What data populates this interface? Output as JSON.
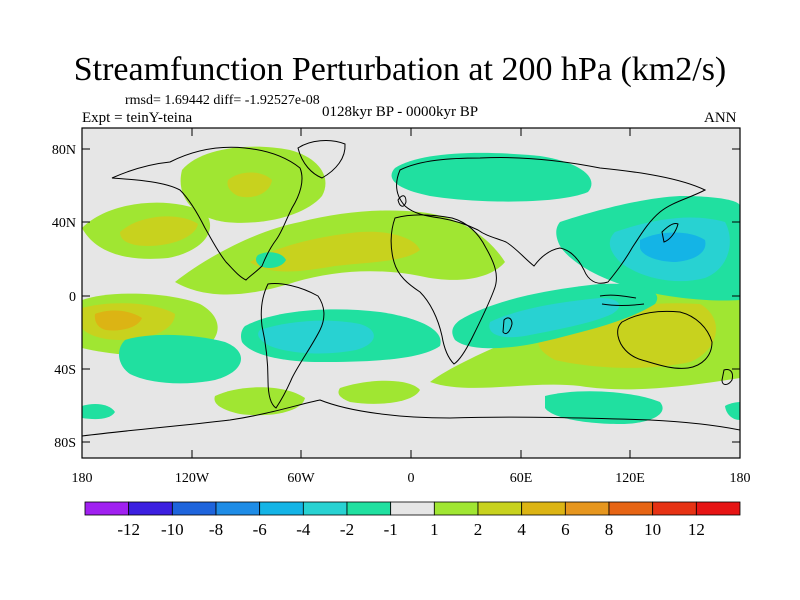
{
  "title": "Streamfunction Perturbation at 200 hPa (km2/s)",
  "stats_text": "rmsd= 1.69442 diff= -1.92527e-08",
  "experiment": "Expt = teinY-teina",
  "period": "0128kyr BP - 0000kyr BP",
  "season": "ANN",
  "y_ticks": [
    "80N",
    "40N",
    "0",
    "40S",
    "80S"
  ],
  "x_ticks": [
    "180",
    "120W",
    "60W",
    "0",
    "60E",
    "120E",
    "180"
  ],
  "colorbar": {
    "labels": [
      "-12",
      "-10",
      "-8",
      "-6",
      "-4",
      "-2",
      "-1",
      "1",
      "2",
      "4",
      "6",
      "8",
      "10",
      "12"
    ],
    "colors": [
      "#a020f0",
      "#3c1fe0",
      "#1e64dc",
      "#1e8ce6",
      "#14b4e6",
      "#28d2d2",
      "#20e0a0",
      "#e6e6e6",
      "#a0e632",
      "#c8d21e",
      "#dcb414",
      "#e6961e",
      "#e66414",
      "#e63214",
      "#e61414"
    ]
  },
  "field_colors": {
    "neutral": "#e6e6e6",
    "pos1": "#a0e632",
    "pos2": "#c8d21e",
    "pos3": "#dcb414",
    "neg1": "#20e0a0",
    "neg2": "#28d2d2",
    "neg3": "#14b4e6"
  }
}
